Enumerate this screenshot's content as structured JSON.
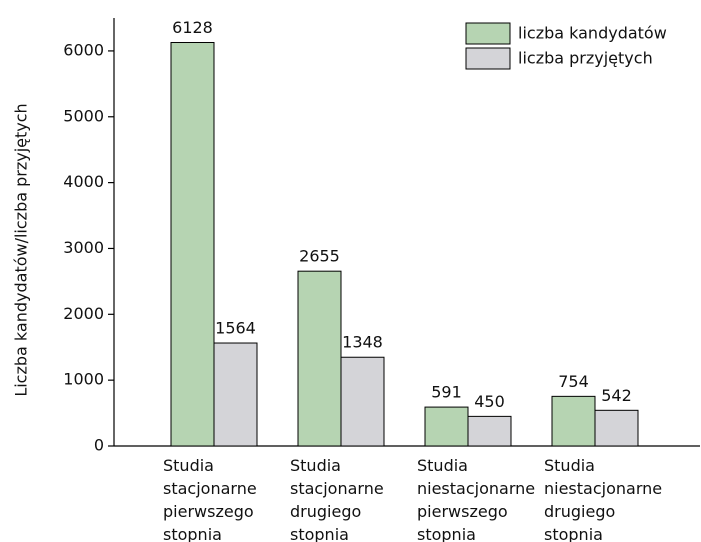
{
  "chart_data": {
    "type": "bar",
    "y_label": "Liczba kandydatów/liczba przyjętych",
    "categories": [
      "Studia stacjonarne pierwszego stopnia",
      "Studia stacjonarne drugiego stopnia",
      "Studia niestacjonarne pierwszego stopnia",
      "Studia niestacjonarne drugiego stopnia"
    ],
    "series": [
      {
        "name": "liczba kandydatów",
        "color": "#b6d4b2",
        "values": [
          6128,
          2655,
          591,
          754
        ]
      },
      {
        "name": "liczba przyjętych",
        "color": "#d4d4d8",
        "values": [
          1564,
          1348,
          450,
          542
        ]
      }
    ],
    "ylim": [
      0,
      6500
    ],
    "yticks": [
      0,
      1000,
      2000,
      3000,
      4000,
      5000,
      6000
    ],
    "legend": "top-right"
  }
}
